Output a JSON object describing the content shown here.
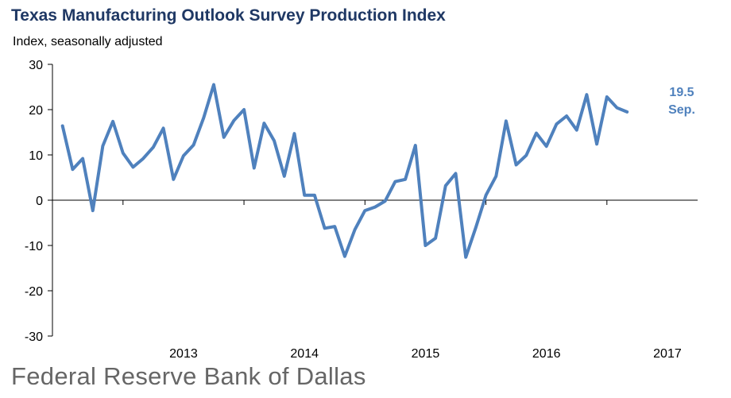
{
  "chart_data": {
    "type": "line",
    "title": "Texas Manufacturing Outlook Survey Production Index",
    "ylabel": "Index, seasonally adjusted",
    "ylim": [
      -30,
      30
    ],
    "yticks": [
      30,
      20,
      10,
      0,
      -10,
      -20,
      -30
    ],
    "xlim": [
      "2012-06",
      "2017-10"
    ],
    "xtick_labels": [
      "2013",
      "2014",
      "2015",
      "2016",
      "2017"
    ],
    "grid": false,
    "legend": "none",
    "series": [
      {
        "color": "#4f81bd",
        "points": [
          [
            "2012-07",
            16.4
          ],
          [
            "2012-08",
            6.8
          ],
          [
            "2012-09",
            9.2
          ],
          [
            "2012-10",
            -2.3
          ],
          [
            "2012-11",
            12.0
          ],
          [
            "2012-12",
            17.4
          ],
          [
            "2013-01",
            10.4
          ],
          [
            "2013-02",
            7.3
          ],
          [
            "2013-03",
            9.2
          ],
          [
            "2013-04",
            11.7
          ],
          [
            "2013-05",
            15.9
          ],
          [
            "2013-06",
            4.6
          ],
          [
            "2013-07",
            9.8
          ],
          [
            "2013-08",
            12.2
          ],
          [
            "2013-09",
            18.2
          ],
          [
            "2013-10",
            25.5
          ],
          [
            "2013-11",
            13.9
          ],
          [
            "2013-12",
            17.6
          ],
          [
            "2014-01",
            20.0
          ],
          [
            "2014-02",
            7.1
          ],
          [
            "2014-03",
            17.0
          ],
          [
            "2014-04",
            13.1
          ],
          [
            "2014-05",
            5.3
          ],
          [
            "2014-06",
            14.7
          ],
          [
            "2014-07",
            1.1
          ],
          [
            "2014-08",
            1.1
          ],
          [
            "2014-09",
            -6.2
          ],
          [
            "2014-10",
            -5.8
          ],
          [
            "2014-11",
            -12.4
          ],
          [
            "2014-12",
            -6.5
          ],
          [
            "2015-01",
            -2.3
          ],
          [
            "2015-02",
            -1.5
          ],
          [
            "2015-03",
            -0.2
          ],
          [
            "2015-04",
            4.1
          ],
          [
            "2015-05",
            4.6
          ],
          [
            "2015-06",
            12.1
          ],
          [
            "2015-07",
            -10.0
          ],
          [
            "2015-08",
            -8.4
          ],
          [
            "2015-09",
            3.2
          ],
          [
            "2015-10",
            5.9
          ],
          [
            "2015-11",
            -12.6
          ],
          [
            "2015-12",
            -6.0
          ],
          [
            "2016-01",
            1.1
          ],
          [
            "2016-02",
            5.3
          ],
          [
            "2016-03",
            17.5
          ],
          [
            "2016-04",
            7.8
          ],
          [
            "2016-05",
            9.9
          ],
          [
            "2016-06",
            14.8
          ],
          [
            "2016-07",
            11.9
          ],
          [
            "2016-08",
            16.8
          ],
          [
            "2016-09",
            18.6
          ],
          [
            "2016-10",
            15.5
          ],
          [
            "2016-11",
            23.3
          ],
          [
            "2016-12",
            12.4
          ],
          [
            "2017-01",
            22.8
          ],
          [
            "2017-02",
            20.4
          ],
          [
            "2017-03",
            19.5
          ]
        ]
      }
    ],
    "annotations": [
      "19.5",
      "Sep."
    ]
  },
  "footer": "Federal Reserve Bank of Dallas"
}
